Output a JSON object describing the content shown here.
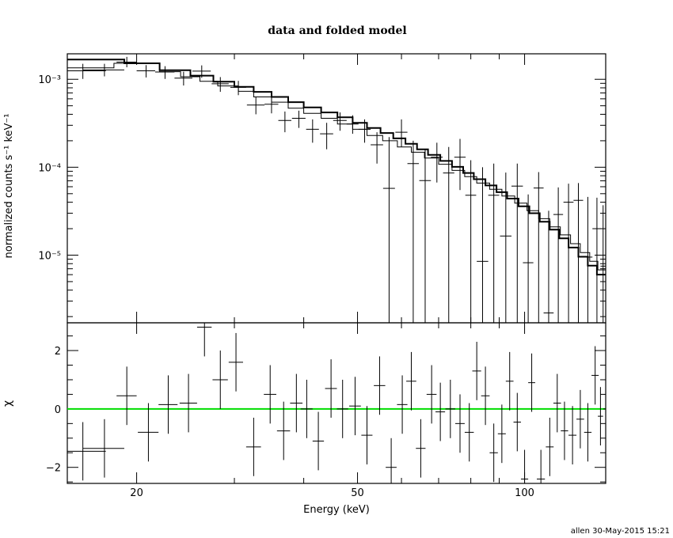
{
  "chart_data": {
    "title": "data and folded model",
    "stamp": "allen 30-May-2015 15:21",
    "x_axis": {
      "label": "Energy (keV)",
      "scale": "log",
      "range": [
        15,
        140
      ],
      "tick_labels": [
        "20",
        "50",
        "100"
      ],
      "tick_values": [
        20,
        50,
        100
      ]
    },
    "panels": [
      {
        "type": "scatter",
        "name": "spectrum",
        "y_scale": "log",
        "ylabel": "normalized counts s⁻¹ keV⁻¹",
        "ylim": [
          1.7e-06,
          0.00195
        ],
        "tick_labels": [
          "10⁻³",
          "10⁻⁴",
          "10⁻⁵"
        ],
        "tick_values": [
          0.001,
          0.0001,
          1e-05
        ],
        "data": {
          "x": [
            16.0,
            17.5,
            19.2,
            20.8,
            22.5,
            24.3,
            26.2,
            28.3,
            30.5,
            32.8,
            35.0,
            37.0,
            39.2,
            41.5,
            44.0,
            46.5,
            49.0,
            51.5,
            54.2,
            57.0,
            60.0,
            63.0,
            66.2,
            69.5,
            73.0,
            76.5,
            80.0,
            84.0,
            88.0,
            92.5,
            97.0,
            101.5,
            106.0,
            110.5,
            115.0,
            120.0,
            125.0,
            130.0,
            135.0,
            138.5
          ],
          "y": [
            0.00125,
            0.00128,
            0.00157,
            0.00125,
            0.00121,
            0.00103,
            0.00124,
            0.00089,
            0.00081,
            0.00051,
            0.00052,
            0.00034,
            0.00036,
            0.00027,
            0.00024,
            0.00034,
            0.00031,
            0.00027,
            0.00018,
            5.75e-05,
            0.00025,
            0.00011,
            7.05e-05,
            0.00013,
            8.6e-05,
            0.00013,
            4.8e-05,
            8.5e-06,
            4.8e-05,
            1.65e-05,
            6.1e-05,
            8.2e-06,
            5.8e-05,
            2.2e-06,
            2.9e-05,
            4e-05,
            4.2e-05,
            9.5e-06,
            2e-05,
            7.5e-06
          ],
          "xerr": [
            1.6,
            1.5,
            0.8,
            0.8,
            0.9,
            0.9,
            1.0,
            1.0,
            1.0,
            1.2,
            1.0,
            1.0,
            1.1,
            1.1,
            1.2,
            1.3,
            1.2,
            1.3,
            1.4,
            1.4,
            1.5,
            1.5,
            1.6,
            1.7,
            1.7,
            1.8,
            1.8,
            2.0,
            2.0,
            2.2,
            2.3,
            2.2,
            2.2,
            2.3,
            2.3,
            2.5,
            2.5,
            2.5,
            2.5,
            1.5
          ],
          "ylo": [
            0.00101,
            0.00108,
            0.00137,
            0.00105,
            0.00101,
            0.00085,
            0.00104,
            0.00072,
            0.00066,
            0.0004,
            0.00041,
            0.00025,
            0.00028,
            0.00019,
            0.00016,
            0.00026,
            0.00024,
            0.00019,
            0.00011,
            1.7e-06,
            0.00017,
            1.7e-06,
            1.7e-06,
            6.7e-05,
            1.7e-06,
            5.5e-05,
            1.7e-06,
            1.7e-06,
            1.7e-06,
            1.7e-06,
            1.7e-06,
            1.7e-06,
            1.7e-06,
            1.7e-06,
            1.7e-06,
            1.7e-06,
            1.7e-06,
            1.7e-06,
            1.7e-06,
            1.7e-06
          ],
          "yhi": [
            0.0015,
            0.0015,
            0.0018,
            0.00145,
            0.00141,
            0.00122,
            0.00144,
            0.00106,
            0.00096,
            0.00063,
            0.00063,
            0.00043,
            0.00044,
            0.00035,
            0.00032,
            0.00042,
            0.00039,
            0.00035,
            0.00025,
            0.00022,
            0.00035,
            0.0002,
            0.00016,
            0.00019,
            0.00017,
            0.00021,
            0.00012,
            0.0001,
            0.00011,
            8.7e-05,
            0.00011,
            4.9e-05,
            8.8e-05,
            3.2e-05,
            5.9e-05,
            6.5e-05,
            6.6e-05,
            4.6e-05,
            4.5e-05,
            3.7e-05
          ]
        },
        "model_thin": {
          "edges": [
            15.0,
            18.2,
            22.0,
            24.0,
            26.0,
            28.0,
            30.5,
            32.5,
            35.0,
            37.5,
            40.0,
            43.0,
            46.0,
            49.0,
            52.0,
            55.5,
            59.0,
            62.5,
            66.0,
            70.0,
            74.0,
            78.0,
            82.0,
            86.5,
            91.0,
            96.0,
            101.0,
            106.0,
            111.0,
            116.0,
            121.0,
            126.0,
            131.0,
            135.5,
            140.0
          ],
          "values": [
            0.00135,
            0.00152,
            0.00122,
            0.00107,
            0.00095,
            0.00084,
            0.00073,
            0.00063,
            0.00055,
            0.00047,
            0.00041,
            0.00036,
            0.00031,
            0.00027,
            0.00023,
            0.0002,
            0.00017,
            0.000148,
            0.000127,
            0.000108,
            9.2e-05,
            7.8e-05,
            6.6e-05,
            5.6e-05,
            4.7e-05,
            3.9e-05,
            3.2e-05,
            2.6e-05,
            2.1e-05,
            1.7e-05,
            1.35e-05,
            1.07e-05,
            8.5e-06,
            6.8e-06
          ]
        },
        "model_thick": {
          "edges": [
            15.0,
            19.0,
            22.0,
            25.0,
            27.5,
            30.0,
            32.5,
            35.0,
            37.5,
            40.0,
            43.0,
            46.0,
            49.0,
            52.0,
            55.0,
            58.0,
            61.0,
            64.0,
            67.0,
            70.5,
            74.0,
            77.5,
            81.0,
            85.0,
            89.0,
            93.0,
            97.5,
            102.0,
            106.5,
            111.0,
            115.5,
            120.0,
            125.0,
            130.0,
            135.0,
            140.0
          ],
          "values": [
            0.00168,
            0.00152,
            0.00127,
            0.0011,
            0.00094,
            0.00082,
            0.00072,
            0.00063,
            0.00055,
            0.00048,
            0.00042,
            0.00037,
            0.00032,
            0.00028,
            0.000245,
            0.000213,
            0.000185,
            0.00016,
            0.000138,
            0.000118,
            0.000101,
            8.6e-05,
            7.3e-05,
            6.2e-05,
            5.2e-05,
            4.4e-05,
            3.6e-05,
            3e-05,
            2.4e-05,
            1.95e-05,
            1.55e-05,
            1.22e-05,
            9.6e-06,
            7.6e-06,
            6e-06
          ]
        }
      },
      {
        "type": "scatter",
        "name": "residuals",
        "y_scale": "linear",
        "ylabel": "χ",
        "ylim": [
          -2.55,
          2.95
        ],
        "tick_labels": [
          "2",
          "0",
          "−2"
        ],
        "tick_values": [
          2,
          0,
          -2
        ],
        "zero_line_color": "#00dd00",
        "data": {
          "x": [
            16.0,
            17.5,
            19.2,
            21.0,
            22.8,
            24.8,
            26.5,
            28.3,
            30.2,
            32.5,
            34.8,
            36.8,
            38.8,
            40.5,
            42.5,
            44.8,
            47.0,
            49.5,
            52.0,
            54.8,
            57.5,
            60.2,
            62.5,
            65.0,
            68.0,
            70.5,
            73.5,
            76.5,
            79.5,
            82.0,
            85.0,
            88.0,
            91.0,
            94.0,
            97.0,
            100.0,
            103.0,
            107.0,
            111.0,
            114.5,
            118.0,
            122.0,
            126.0,
            130.0,
            134.0,
            137.0,
            140.0
          ],
          "y": [
            -1.45,
            -1.35,
            0.45,
            -0.8,
            0.15,
            0.2,
            2.8,
            1.0,
            1.6,
            -1.3,
            0.5,
            -0.75,
            0.2,
            0.0,
            -1.1,
            0.7,
            0.0,
            0.1,
            -0.9,
            0.8,
            -2.0,
            0.15,
            0.95,
            -1.35,
            0.5,
            -0.1,
            0.0,
            -0.5,
            -0.8,
            1.3,
            0.45,
            -1.5,
            -0.85,
            0.95,
            -0.45,
            -2.4,
            0.9,
            -2.4,
            -1.3,
            0.2,
            -0.75,
            -0.9,
            -0.35,
            -0.8,
            1.15,
            -0.25,
            0.0
          ],
          "xerr": [
            1.6,
            1.5,
            0.8,
            0.9,
            0.9,
            0.9,
            0.8,
            0.9,
            0.9,
            1.0,
            0.9,
            1.0,
            1.0,
            1.0,
            1.0,
            1.1,
            1.1,
            1.2,
            1.2,
            1.3,
            1.3,
            1.3,
            1.3,
            1.3,
            1.4,
            1.4,
            1.5,
            1.5,
            1.5,
            1.5,
            1.5,
            1.5,
            1.5,
            1.5,
            1.5,
            1.5,
            1.5,
            1.8,
            1.8,
            1.8,
            1.8,
            2.0,
            2.0,
            2.0,
            2.0,
            1.5,
            1.5
          ],
          "yerr": [
            1.0,
            1.0,
            1.0,
            1.0,
            1.0,
            1.0,
            1.0,
            1.0,
            1.0,
            1.0,
            1.0,
            1.0,
            1.0,
            1.0,
            1.0,
            1.0,
            1.0,
            1.0,
            1.0,
            1.0,
            1.0,
            1.0,
            1.0,
            1.0,
            1.0,
            1.0,
            1.0,
            1.0,
            1.0,
            1.0,
            1.0,
            1.0,
            1.0,
            1.0,
            1.0,
            1.0,
            1.0,
            1.0,
            1.0,
            1.0,
            1.0,
            1.0,
            1.0,
            1.0,
            1.0,
            1.0,
            1.0
          ]
        }
      }
    ]
  }
}
